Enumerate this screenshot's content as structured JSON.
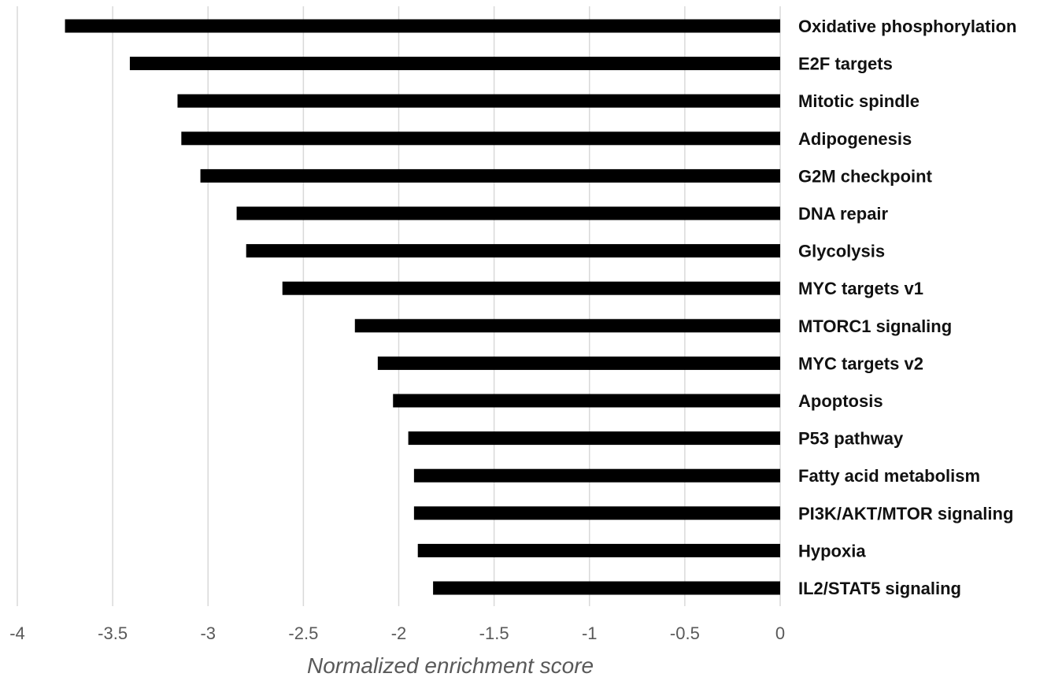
{
  "chart_data": {
    "type": "bar",
    "orientation": "horizontal",
    "title": "",
    "xlabel": "Normalized enrichment score",
    "ylabel": "",
    "xlim": [
      -4,
      0
    ],
    "xticks": [
      -4,
      -3.5,
      -3,
      -2.5,
      -2,
      -1.5,
      -1,
      -0.5,
      0
    ],
    "xtick_labels": [
      "-4",
      "-3.5",
      "-3",
      "-2.5",
      "-2",
      "-1.5",
      "-1",
      "-0.5",
      "0"
    ],
    "grid": "vertical",
    "legend": "none",
    "bar_color": "#000000",
    "categories": [
      "Oxidative phosphorylation",
      "E2F targets",
      "Mitotic spindle",
      "Adipogenesis",
      "G2M checkpoint",
      "DNA repair",
      "Glycolysis",
      "MYC targets v1",
      "MTORC1 signaling",
      "MYC targets v2",
      "Apoptosis",
      "P53 pathway",
      "Fatty acid metabolism",
      "PI3K/AKT/MTOR signaling",
      "Hypoxia",
      "IL2/STAT5 signaling"
    ],
    "values": [
      -3.75,
      -3.41,
      -3.16,
      -3.14,
      -3.04,
      -2.85,
      -2.8,
      -2.61,
      -2.23,
      -2.11,
      -2.03,
      -1.95,
      -1.92,
      -1.92,
      -1.9,
      -1.82
    ]
  }
}
